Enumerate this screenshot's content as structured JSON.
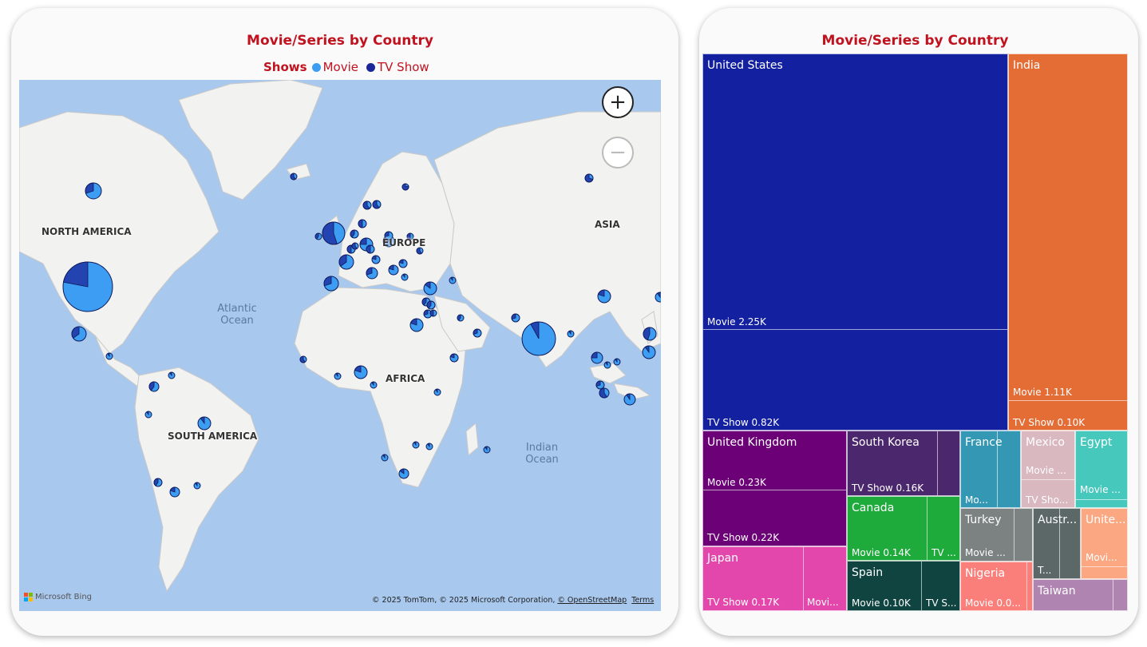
{
  "left_visual": {
    "title": "Movie/Series by Country",
    "legend": {
      "title": "Shows",
      "items": [
        {
          "label": "Movie",
          "color": "#3d9df2"
        },
        {
          "label": "TV Show",
          "color": "#1b2799"
        }
      ]
    },
    "map": {
      "labels": {
        "north_america": "NORTH AMERICA",
        "south_america": "SOUTH AMERICA",
        "europe": "EUROPE",
        "asia": "ASIA",
        "africa": "AFRICA",
        "atlantic": "Atlantic Ocean",
        "indian": "Indian Ocean"
      },
      "zoom_in_icon": "plus-icon",
      "zoom_out_icon": "minus-icon",
      "bing_logo_text": "Microsoft Bing",
      "attribution": "© 2025 TomTom, © 2025 Microsoft Corporation,",
      "osm_link": "© OpenStreetMap",
      "terms_link": "Terms"
    }
  },
  "right_visual": {
    "title": "Movie/Series by Country",
    "tiles": {
      "us": {
        "name": "United States",
        "movie": "Movie 2.25K",
        "tv": "TV Show 0.82K"
      },
      "india": {
        "name": "India",
        "movie": "Movie 1.11K",
        "tv": "TV Show 0.10K"
      },
      "uk": {
        "name": "United Kingdom",
        "movie": "Movie 0.23K",
        "tv": "TV Show 0.22K"
      },
      "south_korea": {
        "name": "South Korea",
        "tv": "TV Show 0.16K"
      },
      "france": {
        "name": "France",
        "sub": "Mo..."
      },
      "mexico": {
        "name": "Mexico",
        "movie": "Movie ...",
        "tv": "TV Sho..."
      },
      "egypt": {
        "name": "Egypt",
        "movie": "Movie ..."
      },
      "canada": {
        "name": "Canada",
        "movie": "Movie 0.14K",
        "tv": "TV ..."
      },
      "turkey": {
        "name": "Turkey",
        "movie": "Movie ..."
      },
      "australia": {
        "name": "Austr...",
        "sub": "T..."
      },
      "uae": {
        "name": "Unite...",
        "movie": "Movi..."
      },
      "japan": {
        "name": "Japan",
        "tv": "TV Show 0.17K",
        "movie": "Movi..."
      },
      "spain": {
        "name": "Spain",
        "movie": "Movie 0.10K",
        "tv": "TV S..."
      },
      "nigeria": {
        "name": "Nigeria",
        "movie": "Movie 0.0..."
      },
      "taiwan": {
        "name": "Taiwan"
      }
    },
    "colors": {
      "us": "#1320a0",
      "india": "#e46c35",
      "uk": "#6b0077",
      "south_korea": "#4b286d",
      "france": "#3498b5",
      "mexico": "#d9b9bf",
      "egypt": "#47c8bd",
      "canada": "#1faa3c",
      "turkey": "#7c8282",
      "australia": "#5b6867",
      "uae": "#fba882",
      "japan": "#e447ab",
      "spain": "#0f4440",
      "nigeria": "#fa7f7a",
      "taiwan": "#b084b0"
    }
  }
}
